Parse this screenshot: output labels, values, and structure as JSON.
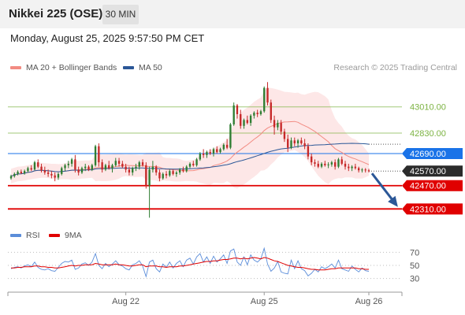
{
  "header": {
    "title": "Nikkei 225 (OSE)",
    "timeframe": "30 MIN"
  },
  "datetime": "Monday, August 25, 2025 9:57:50 PM CET",
  "legend": {
    "ma20_label": "MA 20 + Bollinger Bands",
    "ma20_color": "#f28b82",
    "ma50_label": "MA 50",
    "ma50_color": "#2b5797"
  },
  "credit": "Research © 2025 Trading Central",
  "rsi_legend": {
    "rsi_label": "RSI",
    "rsi_color": "#5b8dd9",
    "ma_label": "9MA",
    "ma_color": "#e00000"
  },
  "chart_data": [
    {
      "type": "candlestick",
      "price_range": [
        42220,
        43230
      ],
      "x_labels": [
        "Aug 22",
        "Aug 25",
        "Aug 26"
      ],
      "current_price": 42570,
      "current_price_label": "42570.00",
      "levels": [
        {
          "value": 43010,
          "label": "43010.00",
          "color": "#7cb342",
          "kind": "resistance"
        },
        {
          "value": 42830,
          "label": "42830.00",
          "color": "#7cb342",
          "kind": "resistance"
        },
        {
          "value": 42690,
          "label": "42690.00",
          "color": "#1a73e8",
          "kind": "pivot"
        },
        {
          "value": 42470,
          "label": "42470.00",
          "color": "#e00000",
          "kind": "support"
        },
        {
          "value": 42310,
          "label": "42310.00",
          "color": "#e00000",
          "kind": "support"
        }
      ],
      "forecast_arrow": {
        "from": 42570,
        "to": 42310,
        "color": "#2b5797"
      },
      "candles": [
        [
          42520,
          42545,
          42510,
          42535
        ],
        [
          42535,
          42560,
          42525,
          42550
        ],
        [
          42550,
          42575,
          42540,
          42565
        ],
        [
          42565,
          42580,
          42550,
          42555
        ],
        [
          42555,
          42580,
          42545,
          42570
        ],
        [
          42570,
          42600,
          42560,
          42590
        ],
        [
          42590,
          42610,
          42570,
          42580
        ],
        [
          42580,
          42640,
          42575,
          42630
        ],
        [
          42630,
          42650,
          42590,
          42600
        ],
        [
          42600,
          42620,
          42560,
          42575
        ],
        [
          42575,
          42600,
          42545,
          42560
        ],
        [
          42560,
          42580,
          42530,
          42550
        ],
        [
          42550,
          42570,
          42520,
          42540
        ],
        [
          42540,
          42560,
          42500,
          42525
        ],
        [
          42525,
          42560,
          42510,
          42550
        ],
        [
          42550,
          42600,
          42540,
          42590
        ],
        [
          42590,
          42620,
          42570,
          42610
        ],
        [
          42610,
          42640,
          42590,
          42620
        ],
        [
          42620,
          42660,
          42600,
          42650
        ],
        [
          42650,
          42680,
          42560,
          42580
        ],
        [
          42580,
          42600,
          42540,
          42560
        ],
        [
          42560,
          42600,
          42550,
          42590
        ],
        [
          42590,
          42620,
          42570,
          42600
        ],
        [
          42600,
          42610,
          42570,
          42580
        ],
        [
          42580,
          42620,
          42570,
          42610
        ],
        [
          42610,
          42750,
          42600,
          42740
        ],
        [
          42740,
          42760,
          42600,
          42630
        ],
        [
          42630,
          42650,
          42560,
          42580
        ],
        [
          42580,
          42620,
          42570,
          42610
        ],
        [
          42610,
          42640,
          42580,
          42590
        ],
        [
          42590,
          42620,
          42560,
          42610
        ],
        [
          42610,
          42660,
          42600,
          42640
        ],
        [
          42640,
          42660,
          42600,
          42620
        ],
        [
          42620,
          42640,
          42590,
          42600
        ],
        [
          42600,
          42620,
          42560,
          42580
        ],
        [
          42580,
          42600,
          42540,
          42560
        ],
        [
          42560,
          42600,
          42540,
          42590
        ],
        [
          42590,
          42620,
          42570,
          42600
        ],
        [
          42600,
          42640,
          42580,
          42630
        ],
        [
          42630,
          42650,
          42600,
          42610
        ],
        [
          42610,
          42630,
          42450,
          42470
        ],
        [
          42470,
          42600,
          42250,
          42580
        ],
        [
          42580,
          42640,
          42560,
          42600
        ],
        [
          42600,
          42610,
          42540,
          42560
        ],
        [
          42560,
          42580,
          42500,
          42520
        ],
        [
          42520,
          42560,
          42510,
          42550
        ],
        [
          42550,
          42570,
          42520,
          42540
        ],
        [
          42540,
          42580,
          42530,
          42570
        ],
        [
          42570,
          42580,
          42540,
          42550
        ],
        [
          42550,
          42570,
          42530,
          42560
        ],
        [
          42560,
          42590,
          42545,
          42580
        ],
        [
          42580,
          42600,
          42560,
          42570
        ],
        [
          42570,
          42610,
          42560,
          42600
        ],
        [
          42600,
          42630,
          42590,
          42620
        ],
        [
          42620,
          42640,
          42600,
          42610
        ],
        [
          42610,
          42660,
          42600,
          42650
        ],
        [
          42650,
          42700,
          42640,
          42690
        ],
        [
          42690,
          42720,
          42660,
          42680
        ],
        [
          42680,
          42710,
          42660,
          42700
        ],
        [
          42700,
          42720,
          42680,
          42690
        ],
        [
          42690,
          42730,
          42670,
          42720
        ],
        [
          42720,
          42740,
          42690,
          42700
        ],
        [
          42700,
          42730,
          42690,
          42720
        ],
        [
          42720,
          42760,
          42710,
          42750
        ],
        [
          42750,
          42790,
          42720,
          42730
        ],
        [
          42730,
          42900,
          42720,
          42890
        ],
        [
          42890,
          43040,
          42880,
          43020
        ],
        [
          43020,
          43030,
          42930,
          42960
        ],
        [
          42960,
          42990,
          42860,
          42880
        ],
        [
          42880,
          42930,
          42860,
          42920
        ],
        [
          42920,
          42950,
          42890,
          42900
        ],
        [
          42900,
          42960,
          42880,
          42950
        ],
        [
          42950,
          42980,
          42930,
          42970
        ],
        [
          42970,
          42990,
          42940,
          42960
        ],
        [
          42960,
          42990,
          42950,
          42980
        ],
        [
          42980,
          43150,
          42970,
          43140
        ],
        [
          43140,
          43180,
          43020,
          43040
        ],
        [
          43040,
          43060,
          42900,
          42920
        ],
        [
          42920,
          42950,
          42820,
          42870
        ],
        [
          42870,
          42920,
          42850,
          42900
        ],
        [
          42900,
          42920,
          42820,
          42840
        ],
        [
          42840,
          42860,
          42770,
          42790
        ],
        [
          42790,
          42820,
          42700,
          42730
        ],
        [
          42730,
          42800,
          42720,
          42780
        ],
        [
          42780,
          42800,
          42740,
          42760
        ],
        [
          42760,
          42790,
          42730,
          42780
        ],
        [
          42780,
          42800,
          42750,
          42760
        ],
        [
          42760,
          42790,
          42720,
          42740
        ],
        [
          42740,
          42760,
          42650,
          42670
        ],
        [
          42670,
          42690,
          42610,
          42630
        ],
        [
          42630,
          42650,
          42600,
          42620
        ],
        [
          42620,
          42640,
          42590,
          42600
        ],
        [
          42600,
          42630,
          42590,
          42620
        ],
        [
          42620,
          42640,
          42600,
          42610
        ],
        [
          42610,
          42630,
          42590,
          42615
        ],
        [
          42615,
          42640,
          42600,
          42630
        ],
        [
          42630,
          42650,
          42580,
          42600
        ],
        [
          42600,
          42660,
          42590,
          42650
        ],
        [
          42650,
          42670,
          42610,
          42620
        ],
        [
          42620,
          42640,
          42580,
          42600
        ],
        [
          42600,
          42620,
          42570,
          42590
        ],
        [
          42590,
          42610,
          42570,
          42600
        ],
        [
          42600,
          42620,
          42580,
          42590
        ],
        [
          42590,
          42600,
          42560,
          42575
        ],
        [
          42575,
          42590,
          42560,
          42580
        ],
        [
          42580,
          42590,
          42560,
          42575
        ],
        [
          42575,
          42585,
          42560,
          42570
        ]
      ]
    },
    {
      "type": "line",
      "name": "RSI",
      "ylim": [
        20,
        80
      ],
      "y_ticks": [
        70,
        50,
        30
      ],
      "rsi": [
        45,
        47,
        48,
        46,
        49,
        51,
        48,
        55,
        47,
        44,
        43,
        45,
        42,
        41,
        47,
        53,
        56,
        55,
        58,
        44,
        46,
        52,
        54,
        50,
        55,
        68,
        50,
        45,
        53,
        48,
        52,
        57,
        51,
        49,
        45,
        43,
        51,
        53,
        57,
        49,
        33,
        55,
        58,
        45,
        40,
        52,
        47,
        55,
        46,
        53,
        57,
        48,
        58,
        61,
        52,
        63,
        68,
        55,
        63,
        53,
        64,
        55,
        60,
        66,
        53,
        72,
        75,
        55,
        50,
        63,
        51,
        66,
        58,
        55,
        60,
        76,
        52,
        41,
        46,
        56,
        40,
        38,
        37,
        58,
        45,
        57,
        45,
        42,
        34,
        38,
        44,
        40,
        48,
        45,
        48,
        52,
        46,
        58,
        45,
        43,
        41,
        49,
        44,
        40,
        46,
        42,
        41
      ],
      "ma9": [
        46,
        46,
        47,
        47,
        48,
        48,
        48,
        49,
        49,
        48,
        48,
        47,
        47,
        46,
        46,
        47,
        48,
        49,
        50,
        49,
        50,
        50,
        51,
        51,
        51,
        53,
        52,
        51,
        51,
        51,
        51,
        52,
        51,
        51,
        50,
        49,
        49,
        50,
        51,
        51,
        48,
        49,
        49,
        49,
        48,
        48,
        47,
        48,
        48,
        48,
        49,
        49,
        50,
        51,
        52,
        53,
        54,
        55,
        56,
        56,
        57,
        57,
        58,
        59,
        59,
        60,
        61,
        61,
        60,
        61,
        60,
        61,
        62,
        61,
        60,
        62,
        61,
        59,
        57,
        56,
        54,
        52,
        50,
        49,
        48,
        47,
        47,
        46,
        45,
        44,
        44,
        43,
        43,
        43,
        44,
        45,
        45,
        46,
        46,
        46,
        46,
        46,
        46,
        45,
        45,
        44,
        44
      ]
    }
  ]
}
